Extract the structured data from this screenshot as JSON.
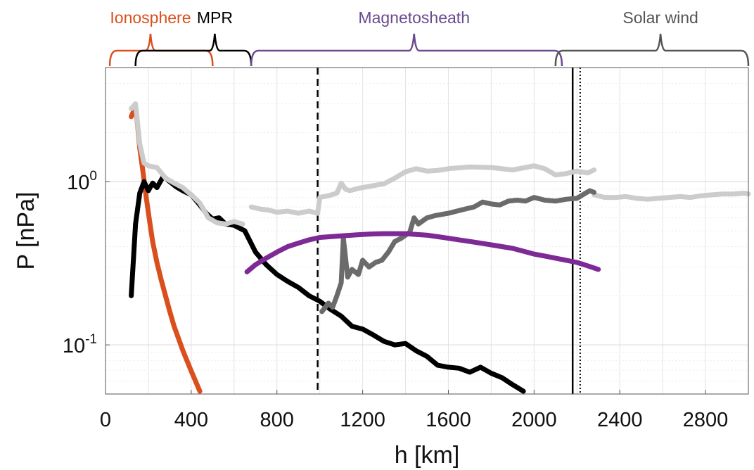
{
  "chart_data": {
    "type": "line",
    "xlabel": "h [km]",
    "ylabel": "P [nPa]",
    "xlim": [
      0,
      3000
    ],
    "ylim": [
      0.05,
      5
    ],
    "yscale": "log",
    "grid": true,
    "x_ticks": [
      0,
      400,
      800,
      1200,
      1600,
      2000,
      2400,
      2800
    ],
    "y_tick_labels": [
      {
        "value": 1.0,
        "base": "10",
        "exp": "0"
      },
      {
        "value": 0.1,
        "base": "10",
        "exp": "-1"
      }
    ],
    "regions": [
      {
        "label": "Ionosphere",
        "color": "#d9501e",
        "x": [
          20,
          500
        ],
        "label_x": 210
      },
      {
        "label": "MPR",
        "color": "#000000",
        "x": [
          140,
          680
        ],
        "label_x": 510
      },
      {
        "label": "Magnetosheath",
        "color": "#6b4a8e",
        "x": [
          680,
          2130
        ],
        "label_x": 1440
      },
      {
        "label": "Solar wind",
        "color": "#555555",
        "x": [
          2100,
          3000
        ],
        "label_x": 2590
      }
    ],
    "vlines": [
      {
        "x": 990,
        "style": "dashed",
        "color": "#000000"
      },
      {
        "x": 2180,
        "style": "solid",
        "color": "#000000"
      },
      {
        "x": 2215,
        "style": "dotted",
        "color": "#000000"
      }
    ],
    "series": [
      {
        "color": "#d9501e",
        "x": [
          120,
          140,
          150,
          160,
          175,
          190,
          205,
          220,
          240,
          260,
          280,
          300,
          320,
          340,
          360,
          380,
          400,
          420,
          440
        ],
        "y": [
          2.5,
          2.9,
          2.2,
          1.6,
          1.15,
          0.8,
          0.58,
          0.43,
          0.32,
          0.25,
          0.2,
          0.16,
          0.13,
          0.11,
          0.093,
          0.08,
          0.069,
          0.06,
          0.052
        ]
      },
      {
        "color": "#000000",
        "x": [
          120,
          140,
          160,
          180,
          200,
          220,
          240,
          270,
          300,
          330,
          360,
          400,
          440,
          470,
          500,
          530,
          560,
          600,
          650,
          700,
          750,
          800,
          850,
          900,
          950,
          1000,
          1050,
          1100,
          1150,
          1200,
          1250,
          1300,
          1350,
          1400,
          1450,
          1500,
          1550,
          1600,
          1650,
          1700,
          1750,
          1800,
          1850,
          1900,
          1950
        ],
        "y": [
          0.2,
          0.55,
          0.85,
          1.0,
          0.88,
          0.98,
          0.92,
          1.08,
          1.0,
          0.93,
          0.88,
          0.83,
          0.72,
          0.64,
          0.59,
          0.6,
          0.55,
          0.54,
          0.5,
          0.37,
          0.31,
          0.27,
          0.245,
          0.225,
          0.2,
          0.185,
          0.165,
          0.15,
          0.13,
          0.125,
          0.115,
          0.105,
          0.1,
          0.102,
          0.092,
          0.085,
          0.075,
          0.073,
          0.072,
          0.068,
          0.073,
          0.067,
          0.063,
          0.057,
          0.052
        ]
      },
      {
        "color": "#cccccc",
        "x": [
          120,
          140,
          160,
          180,
          200,
          240,
          280,
          320,
          360,
          400,
          440,
          480,
          520,
          560,
          600,
          640
        ],
        "y": [
          2.8,
          3.0,
          1.7,
          1.3,
          1.25,
          1.22,
          1.05,
          0.98,
          0.92,
          0.83,
          0.74,
          0.6,
          0.56,
          0.55,
          0.57,
          0.55
        ]
      },
      {
        "color": "#cccccc",
        "x": [
          680,
          720,
          760,
          800,
          850,
          900,
          950,
          990,
          1000,
          1040,
          1080,
          1100,
          1120,
          1140,
          1180,
          1220,
          1260,
          1300,
          1350,
          1400,
          1450,
          1500,
          1550,
          1600,
          1700,
          1800,
          1900,
          2000,
          2050,
          2100,
          2150,
          2200,
          2250,
          2280
        ],
        "y": [
          0.7,
          0.68,
          0.67,
          0.65,
          0.66,
          0.64,
          0.66,
          0.64,
          0.8,
          0.82,
          0.85,
          0.98,
          0.9,
          0.88,
          0.91,
          0.93,
          0.95,
          0.97,
          1.05,
          1.15,
          1.2,
          1.16,
          1.17,
          1.2,
          1.23,
          1.22,
          1.18,
          1.25,
          1.2,
          1.1,
          1.12,
          1.16,
          1.13,
          1.18
        ]
      },
      {
        "color": "#cccccc",
        "x": [
          2280,
          2330,
          2380,
          2430,
          2480,
          2530,
          2580,
          2630,
          2680,
          2730,
          2780,
          2830,
          2880,
          2930,
          2980,
          3000
        ],
        "y": [
          0.83,
          0.8,
          0.8,
          0.81,
          0.79,
          0.78,
          0.79,
          0.8,
          0.81,
          0.8,
          0.82,
          0.83,
          0.84,
          0.84,
          0.85,
          0.84
        ]
      },
      {
        "color": "#6b6b6b",
        "x": [
          1010,
          1040,
          1060,
          1080,
          1100,
          1110,
          1130,
          1150,
          1180,
          1200,
          1230,
          1260,
          1290,
          1320,
          1350,
          1380,
          1420,
          1440,
          1460,
          1500,
          1540,
          1570,
          1600,
          1640,
          1680,
          1720,
          1760,
          1800,
          1840,
          1880,
          1920,
          1960,
          2000,
          2050,
          2100,
          2150,
          2200,
          2240,
          2260,
          2280
        ],
        "y": [
          0.16,
          0.18,
          0.17,
          0.2,
          0.24,
          0.45,
          0.26,
          0.29,
          0.27,
          0.33,
          0.3,
          0.32,
          0.33,
          0.37,
          0.43,
          0.45,
          0.49,
          0.6,
          0.55,
          0.6,
          0.62,
          0.63,
          0.64,
          0.66,
          0.68,
          0.7,
          0.75,
          0.73,
          0.72,
          0.76,
          0.77,
          0.76,
          0.8,
          0.77,
          0.76,
          0.78,
          0.79,
          0.85,
          0.88,
          0.86
        ]
      },
      {
        "color": "#7e2a96",
        "x": [
          660,
          700,
          750,
          800,
          850,
          900,
          950,
          1000,
          1050,
          1100,
          1150,
          1200,
          1250,
          1300,
          1350,
          1400,
          1450,
          1500,
          1550,
          1600,
          1650,
          1700,
          1750,
          1800,
          1850,
          1900,
          1950,
          2000,
          2050,
          2100,
          2150,
          2200,
          2250,
          2300
        ],
        "y": [
          0.28,
          0.31,
          0.34,
          0.37,
          0.4,
          0.42,
          0.44,
          0.455,
          0.46,
          0.465,
          0.47,
          0.475,
          0.478,
          0.48,
          0.48,
          0.48,
          0.475,
          0.47,
          0.46,
          0.45,
          0.44,
          0.43,
          0.42,
          0.41,
          0.4,
          0.39,
          0.375,
          0.36,
          0.35,
          0.34,
          0.33,
          0.32,
          0.305,
          0.29
        ]
      }
    ]
  }
}
